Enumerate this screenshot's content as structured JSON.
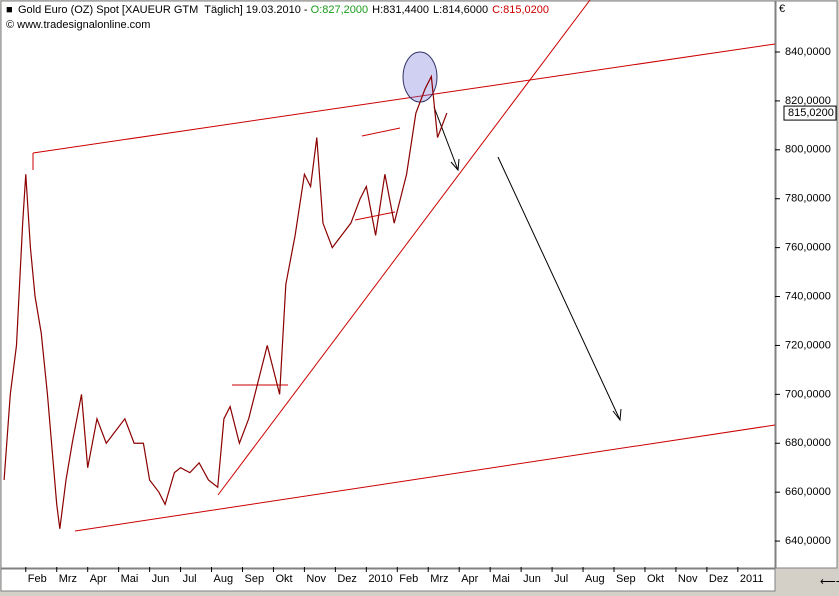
{
  "chart_data": {
    "type": "line",
    "title": "Gold Euro (OZ) Spot [XAUEUR GTM  Täglich] 19.03.2010 - ",
    "ohlc_labels": [
      {
        "text": "O:827,2000",
        "color": "#1a9c1a"
      },
      {
        "text": "H:831,4400",
        "color": "#000000"
      },
      {
        "text": "L:814,6000",
        "color": "#000000"
      },
      {
        "text": "C:815,0200",
        "color": "#cc0000"
      }
    ],
    "source": "© www.tradesignalonline.com",
    "currency": "€",
    "xlim": [
      0.2,
      25.2
    ],
    "xticks": [
      {
        "value": 1,
        "label": "Feb"
      },
      {
        "value": 2,
        "label": "Mrz"
      },
      {
        "value": 3,
        "label": "Apr"
      },
      {
        "value": 4,
        "label": "Mai"
      },
      {
        "value": 5,
        "label": "Jun"
      },
      {
        "value": 6,
        "label": "Jul"
      },
      {
        "value": 7,
        "label": "Aug"
      },
      {
        "value": 8,
        "label": "Sep"
      },
      {
        "value": 9,
        "label": "Okt"
      },
      {
        "value": 10,
        "label": "Nov"
      },
      {
        "value": 11,
        "label": "Dez"
      },
      {
        "value": 12,
        "label": "2010"
      },
      {
        "value": 13,
        "label": "Feb"
      },
      {
        "value": 14,
        "label": "Mrz"
      },
      {
        "value": 15,
        "label": "Apr"
      },
      {
        "value": 16,
        "label": "Mai"
      },
      {
        "value": 17,
        "label": "Jun"
      },
      {
        "value": 18,
        "label": "Jul"
      },
      {
        "value": 19,
        "label": "Aug"
      },
      {
        "value": 20,
        "label": "Sep"
      },
      {
        "value": 21,
        "label": "Okt"
      },
      {
        "value": 22,
        "label": "Nov"
      },
      {
        "value": 23,
        "label": "Dez"
      },
      {
        "value": 24,
        "label": "2011"
      }
    ],
    "ylim": [
      629.4,
      853.9
    ],
    "yticks": [
      {
        "value": 640,
        "label": "640,0000"
      },
      {
        "value": 660,
        "label": "660,0000"
      },
      {
        "value": 680,
        "label": "680,0000"
      },
      {
        "value": 700,
        "label": "700,0000"
      },
      {
        "value": 720,
        "label": "720,0000"
      },
      {
        "value": 740,
        "label": "740,0000"
      },
      {
        "value": 760,
        "label": "760,0000"
      },
      {
        "value": 780,
        "label": "780,0000"
      },
      {
        "value": 800,
        "label": "800,0000"
      },
      {
        "value": 820,
        "label": "820,0000"
      },
      {
        "value": 840,
        "label": "840,0000"
      }
    ],
    "last_price": {
      "value": 815.02,
      "label": "815,0200"
    },
    "series": [
      {
        "color": "#8b0000",
        "x": [
          0.3,
          0.5,
          0.7,
          0.9,
          1.0,
          1.15,
          1.3,
          1.5,
          1.7,
          1.9,
          2.0,
          2.1,
          2.3,
          2.5,
          2.8,
          3.0,
          3.3,
          3.6,
          3.9,
          4.2,
          4.5,
          4.8,
          5.0,
          5.3,
          5.5,
          5.8,
          6.0,
          6.3,
          6.6,
          6.9,
          7.2,
          7.4,
          7.6,
          7.9,
          8.2,
          8.5,
          8.8,
          9.0,
          9.2,
          9.4,
          9.7,
          10.0,
          10.2,
          10.4,
          10.6,
          10.9,
          11.2,
          11.5,
          11.8,
          12.0,
          12.3,
          12.6,
          12.9,
          13.1,
          13.3,
          13.6,
          13.9,
          14.1,
          14.3,
          14.6
        ],
        "values": [
          665,
          700,
          720,
          770,
          790,
          760,
          740,
          725,
          700,
          670,
          655,
          645,
          665,
          680,
          700,
          670,
          690,
          680,
          685,
          690,
          680,
          680,
          665,
          660,
          655,
          668,
          670,
          668,
          672,
          665,
          662,
          690,
          695,
          680,
          690,
          705,
          720,
          710,
          700,
          745,
          765,
          790,
          785,
          805,
          770,
          760,
          765,
          770,
          780,
          785,
          765,
          790,
          770,
          780,
          790,
          815,
          825,
          830,
          805,
          815.02
        ]
      }
    ]
  }
}
